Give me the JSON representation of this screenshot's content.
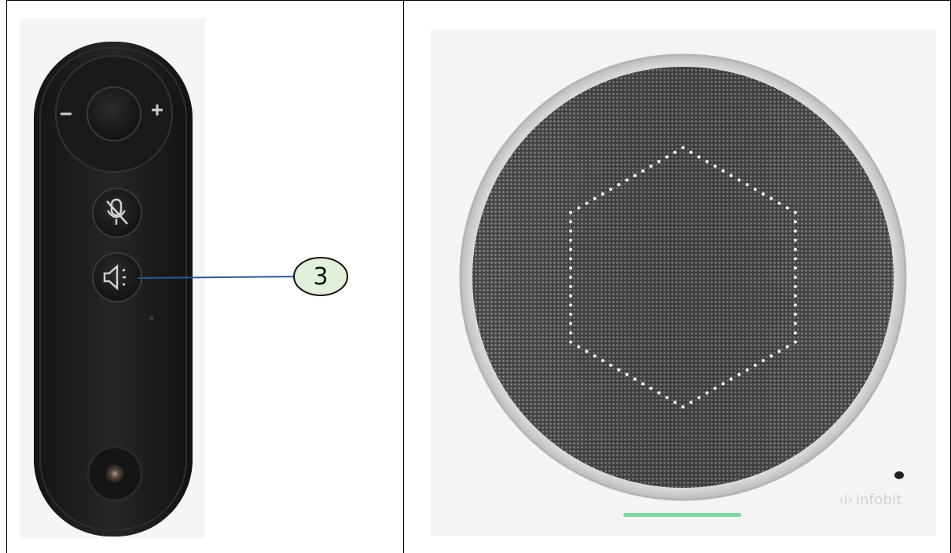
{
  "callout": {
    "number": "3"
  },
  "speakerphone": {
    "brand_mark": "‹i›",
    "brand_name": "infobit"
  },
  "colors": {
    "callout_fill": "#e2efd9",
    "callout_line": "#2f5597",
    "remote_body": "#1e1e1e",
    "led_bar": "#7fd6a0"
  },
  "icons": [
    "volume-down-icon",
    "volume-up-icon",
    "mic-mute-icon",
    "speaker-icon",
    "mic-hole-icon"
  ]
}
